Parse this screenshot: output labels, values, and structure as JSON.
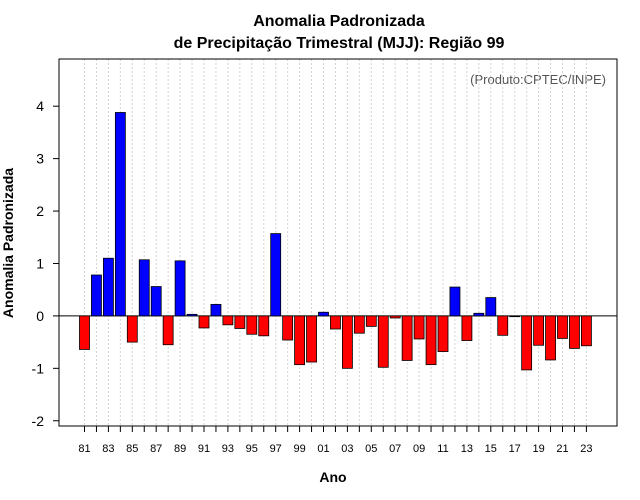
{
  "chart_data": {
    "type": "bar",
    "title_line1": "Anomalia Padronizada",
    "title_line2": "de Precipitação Trimestral (MJJ): Região 99",
    "xlabel": "Ano",
    "ylabel": "Anomalia Padronizada",
    "credit": "(Produto:CPTEC/INPE)",
    "ylim": [
      -2.1,
      4.9
    ],
    "yticks": [
      "-2",
      "-1",
      "0",
      "1",
      "2",
      "3",
      "4"
    ],
    "xtick_labels": [
      "81",
      "83",
      "85",
      "87",
      "89",
      "91",
      "93",
      "95",
      "97",
      "99",
      "01",
      "03",
      "05",
      "07",
      "09",
      "11",
      "13",
      "15",
      "17",
      "19",
      "21",
      "23"
    ],
    "years": [
      "1981",
      "1982",
      "1983",
      "1984",
      "1985",
      "1986",
      "1987",
      "1988",
      "1989",
      "1990",
      "1991",
      "1992",
      "1993",
      "1994",
      "1995",
      "1996",
      "1997",
      "1998",
      "1999",
      "2000",
      "2001",
      "2002",
      "2003",
      "2004",
      "2005",
      "2006",
      "2007",
      "2008",
      "2009",
      "2010",
      "2011",
      "2012",
      "2013",
      "2014",
      "2015",
      "2016",
      "2017",
      "2018",
      "2019",
      "2020",
      "2021",
      "2022",
      "2023"
    ],
    "values": [
      -0.64,
      0.78,
      1.1,
      3.88,
      -0.5,
      1.07,
      0.56,
      -0.55,
      1.05,
      0.03,
      -0.23,
      0.22,
      -0.17,
      -0.24,
      -0.35,
      -0.38,
      1.57,
      -0.46,
      -0.93,
      -0.88,
      0.07,
      -0.25,
      -1.0,
      -0.33,
      -0.2,
      -0.98,
      -0.04,
      -0.85,
      -0.44,
      -0.93,
      -0.68,
      0.55,
      -0.47,
      0.05,
      0.35,
      -0.37,
      -0.01,
      -1.03,
      -0.56,
      -0.84,
      -0.43,
      -0.62,
      -0.57
    ],
    "colors": {
      "positive": "#0000ff",
      "negative": "#ff0000",
      "grid": "#d3d3d3",
      "axis": "#000000"
    }
  }
}
